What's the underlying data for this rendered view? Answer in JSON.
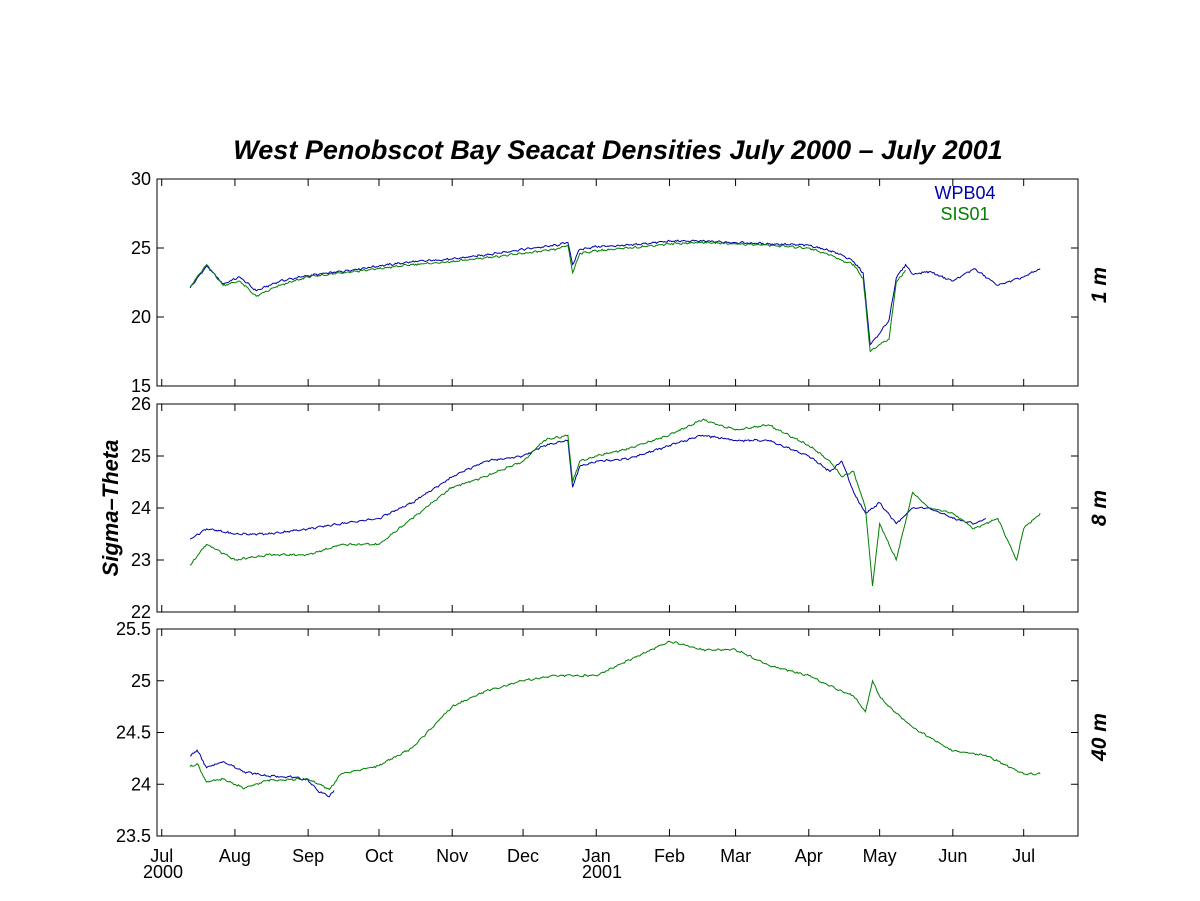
{
  "title": "West Penobscot Bay  Seacat Densities   July 2000 – July 2001",
  "ylabel": "Sigma–Theta",
  "x_axis": {
    "months": [
      "Jul",
      "Aug",
      "Sep",
      "Oct",
      "Nov",
      "Dec",
      "Jan",
      "Feb",
      "Mar",
      "Apr",
      "May",
      "Jun",
      "Jul"
    ],
    "years": [
      "2000",
      "2001"
    ]
  },
  "legend": [
    {
      "name": "WPB04",
      "color": "#0000a8"
    },
    {
      "name": "SIS01",
      "color": "#007f00"
    }
  ],
  "chart_data": [
    {
      "type": "line",
      "depth_label": "1 m",
      "ylim": [
        15,
        30
      ],
      "yticks": [
        "15",
        "20",
        "25",
        "30"
      ],
      "series": [
        {
          "name": "WPB04",
          "color": "#0000a8",
          "x": [
            "2000-07-13",
            "2000-07-20",
            "2000-07-27",
            "2000-08-03",
            "2000-08-10",
            "2000-08-20",
            "2000-09-01",
            "2000-09-15",
            "2000-10-01",
            "2000-10-15",
            "2000-11-01",
            "2000-11-15",
            "2000-12-01",
            "2000-12-15",
            "2000-12-20",
            "2000-12-22",
            "2000-12-25",
            "2001-01-01",
            "2001-01-15",
            "2001-02-01",
            "2001-02-15",
            "2001-03-01",
            "2001-03-15",
            "2001-04-01",
            "2001-04-10",
            "2001-04-15",
            "2001-04-20",
            "2001-04-24",
            "2001-04-27",
            "2001-05-01",
            "2001-05-05",
            "2001-05-08",
            "2001-05-12",
            "2001-05-15",
            "2001-05-22",
            "2001-06-01",
            "2001-06-10",
            "2001-06-20",
            "2001-07-01",
            "2001-07-08"
          ],
          "values": [
            22.1,
            23.7,
            22.4,
            22.9,
            21.9,
            22.6,
            23.0,
            23.3,
            23.7,
            24.0,
            24.2,
            24.5,
            24.9,
            25.2,
            25.4,
            23.8,
            24.9,
            25.1,
            25.2,
            25.5,
            25.5,
            25.4,
            25.3,
            25.2,
            24.8,
            24.5,
            24.0,
            23.2,
            18.0,
            18.8,
            19.8,
            22.8,
            23.8,
            23.1,
            23.3,
            22.6,
            23.5,
            22.3,
            22.9,
            23.5
          ]
        },
        {
          "name": "SIS01",
          "color": "#007f00",
          "x": [
            "2000-07-13",
            "2000-07-20",
            "2000-07-27",
            "2000-08-03",
            "2000-08-10",
            "2000-08-20",
            "2000-09-01",
            "2000-09-15",
            "2000-10-01",
            "2000-10-15",
            "2000-11-01",
            "2000-11-15",
            "2000-12-01",
            "2000-12-15",
            "2000-12-20",
            "2000-12-22",
            "2000-12-25",
            "2001-01-01",
            "2001-01-15",
            "2001-02-01",
            "2001-02-15",
            "2001-03-01",
            "2001-03-15",
            "2001-04-01",
            "2001-04-10",
            "2001-04-15",
            "2001-04-20",
            "2001-04-24",
            "2001-04-27",
            "2001-05-01",
            "2001-05-05",
            "2001-05-08",
            "2001-05-12"
          ],
          "values": [
            22.2,
            23.8,
            22.3,
            22.6,
            21.5,
            22.3,
            22.9,
            23.2,
            23.5,
            23.8,
            24.0,
            24.3,
            24.6,
            24.9,
            25.2,
            23.2,
            24.6,
            24.8,
            25.0,
            25.3,
            25.4,
            25.3,
            25.2,
            25.0,
            24.5,
            24.1,
            23.8,
            22.8,
            17.5,
            18.0,
            18.4,
            22.5,
            23.4
          ]
        }
      ]
    },
    {
      "type": "line",
      "depth_label": "8 m",
      "ylim": [
        22,
        26
      ],
      "yticks": [
        "22",
        "23",
        "24",
        "25",
        "26"
      ],
      "series": [
        {
          "name": "WPB04",
          "color": "#0000a8",
          "x": [
            "2000-07-13",
            "2000-07-20",
            "2000-08-01",
            "2000-08-15",
            "2000-09-01",
            "2000-09-15",
            "2000-10-01",
            "2000-10-15",
            "2000-11-01",
            "2000-11-15",
            "2000-12-01",
            "2000-12-10",
            "2000-12-20",
            "2000-12-22",
            "2000-12-25",
            "2001-01-01",
            "2001-01-15",
            "2001-02-01",
            "2001-02-15",
            "2001-03-01",
            "2001-03-15",
            "2001-04-01",
            "2001-04-10",
            "2001-04-15",
            "2001-04-20",
            "2001-04-25",
            "2001-05-01",
            "2001-05-08",
            "2001-05-15",
            "2001-05-22",
            "2001-06-01",
            "2001-06-10",
            "2001-06-15"
          ],
          "values": [
            23.4,
            23.6,
            23.5,
            23.5,
            23.6,
            23.7,
            23.8,
            24.1,
            24.6,
            24.9,
            25.0,
            25.2,
            25.3,
            24.4,
            24.8,
            24.9,
            24.95,
            25.2,
            25.4,
            25.3,
            25.3,
            25.0,
            24.7,
            24.9,
            24.3,
            23.9,
            24.1,
            23.7,
            24.0,
            24.0,
            23.8,
            23.7,
            23.8
          ]
        },
        {
          "name": "SIS01",
          "color": "#007f00",
          "x": [
            "2000-07-13",
            "2000-07-20",
            "2000-08-01",
            "2000-08-15",
            "2000-09-01",
            "2000-09-15",
            "2000-10-01",
            "2000-10-15",
            "2000-11-01",
            "2000-11-15",
            "2000-12-01",
            "2000-12-10",
            "2000-12-20",
            "2000-12-22",
            "2000-12-25",
            "2001-01-01",
            "2001-01-15",
            "2001-02-01",
            "2001-02-15",
            "2001-03-01",
            "2001-03-15",
            "2001-04-01",
            "2001-04-10",
            "2001-04-15",
            "2001-04-20",
            "2001-04-25",
            "2001-04-28",
            "2001-05-01",
            "2001-05-08",
            "2001-05-15",
            "2001-05-22",
            "2001-06-01",
            "2001-06-10",
            "2001-06-20",
            "2001-06-28",
            "2001-07-01",
            "2001-07-08"
          ],
          "values": [
            22.9,
            23.3,
            23.0,
            23.1,
            23.1,
            23.3,
            23.3,
            23.8,
            24.4,
            24.6,
            24.9,
            25.3,
            25.4,
            24.5,
            24.9,
            25.0,
            25.15,
            25.4,
            25.7,
            25.5,
            25.6,
            25.2,
            24.9,
            24.6,
            24.7,
            24.0,
            22.5,
            23.7,
            23.0,
            24.3,
            24.0,
            23.9,
            23.6,
            23.8,
            23.0,
            23.6,
            23.9
          ]
        }
      ]
    },
    {
      "type": "line",
      "depth_label": "40 m",
      "ylim": [
        23.5,
        25.5
      ],
      "yticks": [
        "23.5",
        "24",
        "24.5",
        "25",
        "25.5"
      ],
      "series": [
        {
          "name": "WPB04",
          "color": "#0000a8",
          "x": [
            "2000-07-13",
            "2000-07-16",
            "2000-07-20",
            "2000-07-27",
            "2000-08-05",
            "2000-08-15",
            "2000-08-25",
            "2000-09-01",
            "2000-09-05",
            "2000-09-10",
            "2000-09-12"
          ],
          "values": [
            24.27,
            24.33,
            24.16,
            24.22,
            24.12,
            24.08,
            24.07,
            24.04,
            23.94,
            23.88,
            23.94
          ]
        },
        {
          "name": "SIS01",
          "color": "#007f00",
          "x": [
            "2000-07-13",
            "2000-07-16",
            "2000-07-20",
            "2000-07-27",
            "2000-08-05",
            "2000-08-15",
            "2000-09-01",
            "2000-09-10",
            "2000-09-15",
            "2000-10-01",
            "2000-10-15",
            "2000-11-01",
            "2000-11-15",
            "2000-12-01",
            "2000-12-15",
            "2001-01-01",
            "2001-01-15",
            "2001-02-01",
            "2001-02-15",
            "2001-03-01",
            "2001-03-15",
            "2001-04-01",
            "2001-04-10",
            "2001-04-20",
            "2001-04-25",
            "2001-04-28",
            "2001-05-01",
            "2001-05-05",
            "2001-05-15",
            "2001-06-01",
            "2001-06-15",
            "2001-07-01",
            "2001-07-08"
          ],
          "values": [
            24.17,
            24.2,
            24.02,
            24.05,
            23.96,
            24.04,
            24.05,
            23.95,
            24.1,
            24.18,
            24.35,
            24.75,
            24.9,
            25.0,
            25.05,
            25.05,
            25.2,
            25.38,
            25.3,
            25.3,
            25.15,
            25.05,
            24.95,
            24.85,
            24.7,
            25.0,
            24.85,
            24.75,
            24.55,
            24.32,
            24.28,
            24.1,
            24.1
          ]
        }
      ]
    }
  ]
}
